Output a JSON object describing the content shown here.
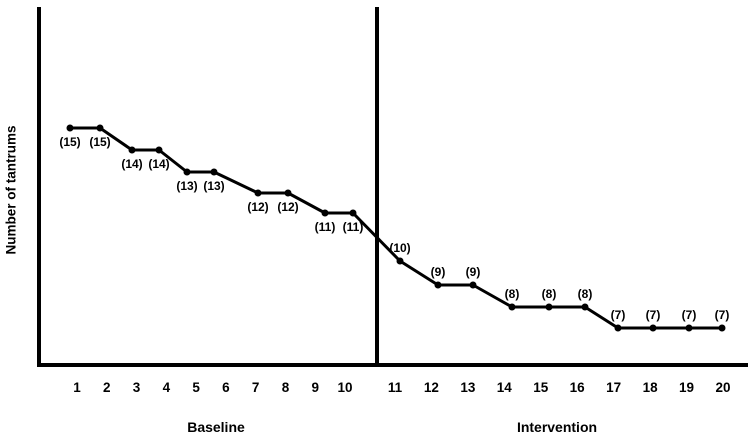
{
  "chart_data": {
    "type": "line",
    "title": "",
    "ylabel": "Number of tantrums",
    "xlabel": "",
    "x": [
      1,
      2,
      3,
      4,
      5,
      6,
      7,
      8,
      9,
      10,
      11,
      12,
      13,
      14,
      15,
      16,
      17,
      18,
      19,
      20
    ],
    "values": [
      15,
      15,
      14,
      14,
      13,
      13,
      12,
      12,
      11,
      11,
      10,
      9,
      9,
      8,
      8,
      8,
      7,
      7,
      7,
      7
    ],
    "point_labels": [
      "(15)",
      "(15)",
      "(14)",
      "(14)",
      "(13)",
      "(13)",
      "(12)",
      "(12)",
      "(11)",
      "(11)",
      "(10)",
      "(9)",
      "(9)",
      "(8)",
      "(8)",
      "(8)",
      "(7)",
      "(7)",
      "(7)",
      "(7)"
    ],
    "phases": [
      {
        "label": "Baseline",
        "sessions": [
          1,
          10
        ],
        "point_label_position": "below"
      },
      {
        "label": "Intervention",
        "sessions": [
          11,
          20
        ],
        "point_label_position": "above"
      }
    ],
    "phase_divider_after_session": 10,
    "series_color": "#000000",
    "background_color": "#ffffff",
    "grid": false,
    "legend": false,
    "y_tick_labels_visible": false
  }
}
